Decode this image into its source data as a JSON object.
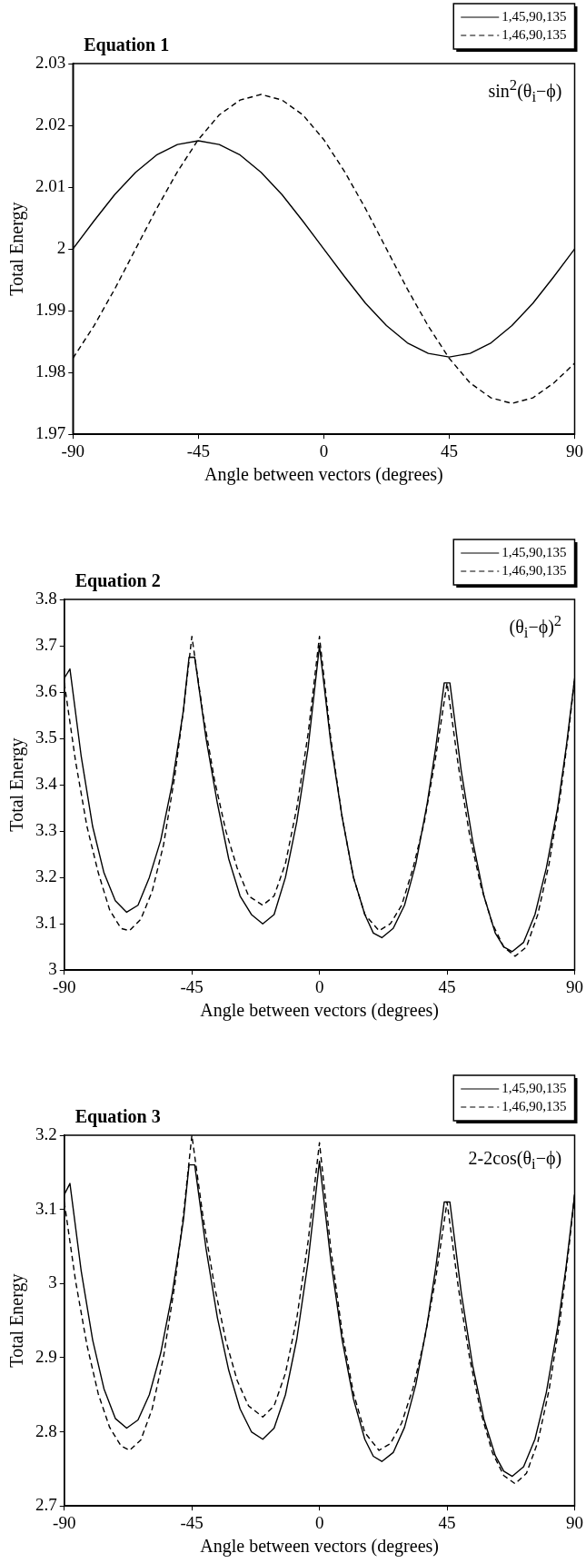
{
  "chart_data": [
    {
      "type": "line",
      "title": "Equation 1",
      "xlabel": "Angle between vectors (degrees)",
      "ylabel": "Total Energy",
      "annotations": [
        "sin$^{2}$(θ$_{i}$−ϕ)"
      ],
      "xlim": [
        -90,
        90
      ],
      "xticks": [
        -90,
        -45,
        0,
        45,
        90
      ],
      "ylim": [
        1.97,
        2.03
      ],
      "yticks": [
        1.97,
        1.98,
        1.99,
        2,
        2.01,
        2.02,
        2.03
      ],
      "grid": false,
      "legend": "top right",
      "marker": "none",
      "series": [
        {
          "name": "1,45,90,135",
          "color": "#000000",
          "line_style": "solid",
          "x": [
            -90,
            -82.5,
            -75,
            -67.5,
            -60,
            -52.5,
            -45,
            -37.5,
            -30,
            -22.5,
            -15,
            -7.5,
            0,
            7.5,
            15,
            22.5,
            30,
            37.5,
            45,
            52.5,
            60,
            67.5,
            75,
            82.5,
            90
          ],
          "values": [
            2.0,
            2.0045,
            2.0088,
            2.0124,
            2.0152,
            2.0169,
            2.0175,
            2.0169,
            2.0152,
            2.0124,
            2.0088,
            2.0045,
            2.0,
            1.9955,
            1.9912,
            1.9876,
            1.9848,
            1.9831,
            1.9825,
            1.9831,
            1.9848,
            1.9876,
            1.9912,
            1.9955,
            2.0
          ]
        },
        {
          "name": "1,46,90,135",
          "color": "#000000",
          "line_style": "dashed",
          "x": [
            -90,
            -82.5,
            -75,
            -67.5,
            -60,
            -52.5,
            -45,
            -37.5,
            -30,
            -22.5,
            -15,
            -7.5,
            0,
            7.5,
            15,
            22.5,
            30,
            37.5,
            45,
            52.5,
            60,
            67.5,
            75,
            82.5,
            90
          ],
          "values": [
            1.9823,
            1.9875,
            1.9935,
            2.0,
            2.0065,
            2.0125,
            2.0177,
            2.0217,
            2.0241,
            2.025,
            2.0241,
            2.0217,
            2.0177,
            2.0125,
            2.0065,
            2.0,
            1.9935,
            1.9875,
            1.9823,
            1.9783,
            1.9759,
            1.975,
            1.9759,
            1.9783,
            1.9815
          ]
        }
      ]
    },
    {
      "type": "line",
      "title": "Equation 2",
      "xlabel": "Angle between vectors (degrees)",
      "ylabel": "Total Energy",
      "annotations": [
        "(θ$_{i}$−ϕ)$^{2}$"
      ],
      "xlim": [
        -90,
        90
      ],
      "xticks": [
        -90,
        -45,
        0,
        45,
        90
      ],
      "ylim": [
        3,
        3.8
      ],
      "yticks": [
        3,
        3.1,
        3.2,
        3.3,
        3.4,
        3.5,
        3.6,
        3.7,
        3.8
      ],
      "grid": false,
      "legend": "top right",
      "marker": "none",
      "series": [
        {
          "name": "1,45,90,135",
          "color": "#000000",
          "line_style": "solid",
          "x": [
            -90,
            -88,
            -84,
            -80,
            -76,
            -72,
            -68,
            -64,
            -60,
            -56,
            -52,
            -48,
            -46,
            -44,
            -40,
            -36,
            -32,
            -28,
            -24,
            -20,
            -16,
            -12,
            -8,
            -4,
            0,
            4,
            8,
            12,
            16,
            19,
            22,
            26,
            30,
            34,
            38,
            41,
            44,
            46,
            50,
            54,
            58,
            62,
            65,
            68,
            72,
            76,
            80,
            84,
            87,
            90
          ],
          "values": [
            3.63,
            3.65,
            3.46,
            3.31,
            3.21,
            3.15,
            3.125,
            3.14,
            3.2,
            3.28,
            3.4,
            3.56,
            3.675,
            3.675,
            3.5,
            3.36,
            3.24,
            3.16,
            3.12,
            3.1,
            3.12,
            3.2,
            3.32,
            3.48,
            3.7,
            3.49,
            3.33,
            3.2,
            3.12,
            3.08,
            3.07,
            3.09,
            3.14,
            3.23,
            3.36,
            3.48,
            3.62,
            3.62,
            3.43,
            3.28,
            3.16,
            3.08,
            3.05,
            3.04,
            3.06,
            3.12,
            3.22,
            3.35,
            3.48,
            3.63
          ]
        },
        {
          "name": "1,46,90,135",
          "color": "#000000",
          "line_style": "dashed",
          "x": [
            -90,
            -86,
            -82,
            -78,
            -74,
            -70,
            -67,
            -63,
            -59,
            -55,
            -51,
            -48,
            -45,
            -41,
            -37,
            -33,
            -29,
            -25,
            -20,
            -16,
            -12,
            -8,
            -4,
            0,
            4,
            8,
            12,
            16,
            21,
            25,
            29,
            33,
            37,
            41,
            45,
            49,
            53,
            57,
            61,
            65,
            69,
            73,
            77,
            81,
            85,
            88,
            90
          ],
          "values": [
            3.62,
            3.45,
            3.31,
            3.21,
            3.13,
            3.09,
            3.085,
            3.11,
            3.17,
            3.27,
            3.42,
            3.56,
            3.72,
            3.55,
            3.41,
            3.3,
            3.22,
            3.16,
            3.14,
            3.16,
            3.23,
            3.35,
            3.51,
            3.72,
            3.5,
            3.33,
            3.2,
            3.12,
            3.085,
            3.1,
            3.14,
            3.22,
            3.32,
            3.46,
            3.62,
            3.44,
            3.29,
            3.18,
            3.1,
            3.05,
            3.03,
            3.05,
            3.12,
            3.23,
            3.38,
            3.52,
            3.63
          ]
        }
      ]
    },
    {
      "type": "line",
      "title": "Equation 3",
      "xlabel": "Angle between vectors (degrees)",
      "ylabel": "Total Energy",
      "annotations": [
        "2-2cos(θ$_{i}$−ϕ)"
      ],
      "xlim": [
        -90,
        90
      ],
      "xticks": [
        -90,
        -45,
        0,
        45,
        90
      ],
      "ylim": [
        2.7,
        3.2
      ],
      "yticks": [
        2.7,
        2.8,
        2.9,
        3,
        3.1,
        3.2
      ],
      "grid": false,
      "legend": "top right",
      "marker": "none",
      "series": [
        {
          "name": "1,45,90,135",
          "color": "#000000",
          "line_style": "solid",
          "x": [
            -90,
            -88,
            -84,
            -80,
            -76,
            -72,
            -68,
            -64,
            -60,
            -56,
            -52,
            -48,
            -46,
            -44,
            -40,
            -36,
            -32,
            -28,
            -24,
            -20,
            -16,
            -12,
            -8,
            -4,
            0,
            4,
            8,
            12,
            16,
            19,
            22,
            26,
            30,
            34,
            38,
            41,
            44,
            46,
            50,
            54,
            58,
            62,
            65,
            68,
            72,
            76,
            80,
            84,
            87,
            90
          ],
          "values": [
            3.12,
            3.135,
            3.016,
            2.924,
            2.858,
            2.818,
            2.805,
            2.816,
            2.85,
            2.906,
            2.985,
            3.085,
            3.16,
            3.16,
            3.047,
            2.954,
            2.883,
            2.831,
            2.8,
            2.79,
            2.805,
            2.85,
            2.925,
            3.03,
            3.165,
            3.031,
            2.924,
            2.844,
            2.79,
            2.767,
            2.76,
            2.772,
            2.806,
            2.864,
            2.945,
            3.021,
            3.11,
            3.11,
            2.988,
            2.89,
            2.817,
            2.768,
            2.747,
            2.74,
            2.753,
            2.79,
            2.853,
            2.941,
            3.023,
            3.12
          ]
        },
        {
          "name": "1,46,90,135",
          "color": "#000000",
          "line_style": "dashed",
          "x": [
            -90,
            -86,
            -82,
            -78,
            -74,
            -70,
            -67,
            -63,
            -59,
            -55,
            -51,
            -48,
            -45,
            -41,
            -37,
            -33,
            -29,
            -25,
            -20,
            -16,
            -12,
            -8,
            -4,
            0,
            4,
            8,
            12,
            16,
            21,
            25,
            29,
            33,
            37,
            41,
            45,
            49,
            53,
            57,
            61,
            65,
            69,
            73,
            77,
            81,
            85,
            88,
            90
          ],
          "values": [
            3.11,
            3.003,
            2.917,
            2.851,
            2.806,
            2.781,
            2.775,
            2.789,
            2.831,
            2.901,
            2.999,
            3.092,
            3.2,
            3.088,
            2.996,
            2.923,
            2.869,
            2.835,
            2.82,
            2.835,
            2.879,
            2.953,
            3.057,
            3.19,
            3.047,
            2.934,
            2.852,
            2.799,
            2.775,
            2.784,
            2.812,
            2.859,
            2.924,
            3.007,
            3.11,
            2.994,
            2.899,
            2.825,
            2.772,
            2.741,
            2.73,
            2.744,
            2.786,
            2.857,
            2.955,
            3.049,
            3.12
          ]
        }
      ]
    }
  ]
}
